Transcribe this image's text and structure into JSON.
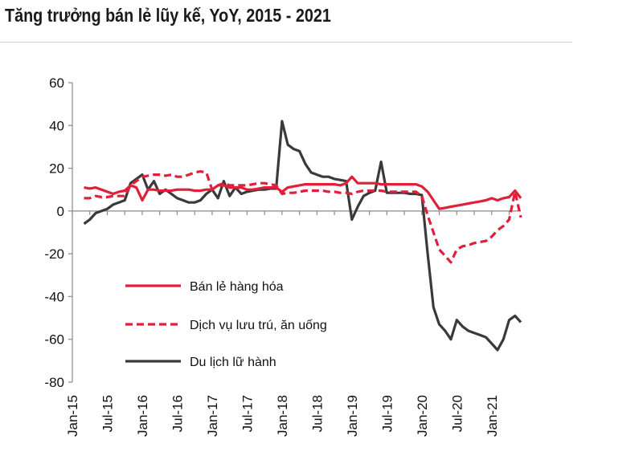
{
  "chart_data": {
    "type": "line",
    "title": "Tăng trưởng bán lẻ lũy kế, YoY, 2015 - 2021",
    "xlabel": "",
    "ylabel": "",
    "ylim": [
      -80,
      60
    ],
    "yticks": [
      60,
      40,
      20,
      0,
      -20,
      -40,
      -60,
      -80
    ],
    "xlim": [
      "Jan-15",
      "Jun-21"
    ],
    "xticks": [
      "Jan-15",
      "Jul-15",
      "Jan-16",
      "Jul-16",
      "Jan-17",
      "Jul-17",
      "Jan-18",
      "Jul-18",
      "Jan-19",
      "Jul-19",
      "Jan-20",
      "Jul-20",
      "Jan-21"
    ],
    "grid": false,
    "legend_position": "center-left",
    "colors": {
      "retail": "#e0203a",
      "accommodation": "#e0203a",
      "travel": "#3a3a3a"
    },
    "series": [
      {
        "name": "Bán lẻ hàng hóa",
        "style": "solid",
        "points": [
          [
            "Mar-15",
            11
          ],
          [
            "Apr-15",
            10.5
          ],
          [
            "May-15",
            11
          ],
          [
            "Jun-15",
            10
          ],
          [
            "Jul-15",
            9
          ],
          [
            "Aug-15",
            8
          ],
          [
            "Sep-15",
            9
          ],
          [
            "Oct-15",
            9.5
          ],
          [
            "Nov-15",
            12
          ],
          [
            "Dec-15",
            11
          ],
          [
            "Jan-16",
            5
          ],
          [
            "Feb-16",
            10
          ],
          [
            "Mar-16",
            10
          ],
          [
            "Apr-16",
            9.5
          ],
          [
            "May-16",
            9.5
          ],
          [
            "Jun-16",
            9.5
          ],
          [
            "Jul-16",
            10
          ],
          [
            "Aug-16",
            10
          ],
          [
            "Sep-16",
            10
          ],
          [
            "Oct-16",
            9.5
          ],
          [
            "Nov-16",
            9.5
          ],
          [
            "Dec-16",
            10
          ],
          [
            "Jan-17",
            10
          ],
          [
            "Feb-17",
            12
          ],
          [
            "Mar-17",
            12
          ],
          [
            "Apr-17",
            11
          ],
          [
            "May-17",
            11
          ],
          [
            "Jun-17",
            11
          ],
          [
            "Jul-17",
            10
          ],
          [
            "Aug-17",
            10
          ],
          [
            "Sep-17",
            10.5
          ],
          [
            "Oct-17",
            11
          ],
          [
            "Nov-17",
            11
          ],
          [
            "Dec-17",
            11
          ],
          [
            "Jan-18",
            9
          ],
          [
            "Feb-18",
            11
          ],
          [
            "Mar-18",
            11.5
          ],
          [
            "Apr-18",
            12
          ],
          [
            "May-18",
            12.5
          ],
          [
            "Jun-18",
            12.5
          ],
          [
            "Jul-18",
            12.5
          ],
          [
            "Aug-18",
            12.5
          ],
          [
            "Sep-18",
            12.5
          ],
          [
            "Oct-18",
            12.5
          ],
          [
            "Nov-18",
            12
          ],
          [
            "Dec-18",
            13
          ],
          [
            "Jan-19",
            16
          ],
          [
            "Feb-19",
            13
          ],
          [
            "Mar-19",
            13
          ],
          [
            "Apr-19",
            13
          ],
          [
            "May-19",
            13
          ],
          [
            "Jun-19",
            12.5
          ],
          [
            "Jul-19",
            12.5
          ],
          [
            "Aug-19",
            12.5
          ],
          [
            "Sep-19",
            12.5
          ],
          [
            "Oct-19",
            12.5
          ],
          [
            "Nov-19",
            12.5
          ],
          [
            "Dec-19",
            12.5
          ],
          [
            "Jan-20",
            11.5
          ],
          [
            "Feb-20",
            9
          ],
          [
            "Mar-20",
            5
          ],
          [
            "Apr-20",
            1
          ],
          [
            "May-20",
            1.5
          ],
          [
            "Jun-20",
            2
          ],
          [
            "Jul-20",
            2.5
          ],
          [
            "Aug-20",
            3
          ],
          [
            "Sep-20",
            3.5
          ],
          [
            "Oct-20",
            4
          ],
          [
            "Nov-20",
            4.5
          ],
          [
            "Dec-20",
            5
          ],
          [
            "Jan-21",
            6
          ],
          [
            "Feb-21",
            5
          ],
          [
            "Mar-21",
            6
          ],
          [
            "Apr-21",
            6.5
          ],
          [
            "May-21",
            9.5
          ],
          [
            "Jun-21",
            6
          ]
        ]
      },
      {
        "name": "Dịch vụ lưu trú, ăn uống",
        "style": "dashed",
        "points": [
          [
            "Mar-15",
            6
          ],
          [
            "Apr-15",
            6
          ],
          [
            "May-15",
            7
          ],
          [
            "Jun-15",
            6.5
          ],
          [
            "Jul-15",
            6.5
          ],
          [
            "Aug-15",
            7
          ],
          [
            "Sep-15",
            7
          ],
          [
            "Oct-15",
            7
          ],
          [
            "Nov-15",
            12
          ],
          [
            "Dec-15",
            14
          ],
          [
            "Jan-16",
            16
          ],
          [
            "Feb-16",
            16.5
          ],
          [
            "Mar-16",
            17
          ],
          [
            "Apr-16",
            17
          ],
          [
            "May-16",
            16.5
          ],
          [
            "Jun-16",
            17
          ],
          [
            "Jul-16",
            16
          ],
          [
            "Aug-16",
            16
          ],
          [
            "Sep-16",
            17
          ],
          [
            "Oct-16",
            18
          ],
          [
            "Nov-16",
            18.5
          ],
          [
            "Dec-16",
            18
          ],
          [
            "Jan-17",
            10
          ],
          [
            "Feb-17",
            12
          ],
          [
            "Mar-17",
            13
          ],
          [
            "Apr-17",
            12
          ],
          [
            "May-17",
            12
          ],
          [
            "Jun-17",
            12
          ],
          [
            "Jul-17",
            12
          ],
          [
            "Aug-17",
            12.5
          ],
          [
            "Sep-17",
            13
          ],
          [
            "Oct-17",
            13
          ],
          [
            "Nov-17",
            12.5
          ],
          [
            "Dec-17",
            12
          ],
          [
            "Jan-18",
            8
          ],
          [
            "Feb-18",
            8.5
          ],
          [
            "Mar-18",
            8.5
          ],
          [
            "Apr-18",
            9
          ],
          [
            "May-18",
            9.5
          ],
          [
            "Jun-18",
            9.5
          ],
          [
            "Jul-18",
            9.5
          ],
          [
            "Aug-18",
            9.5
          ],
          [
            "Sep-18",
            9
          ],
          [
            "Oct-18",
            9
          ],
          [
            "Nov-18",
            8.5
          ],
          [
            "Dec-18",
            8.5
          ],
          [
            "Jan-19",
            8
          ],
          [
            "Feb-19",
            9
          ],
          [
            "Mar-19",
            9.5
          ],
          [
            "Apr-19",
            9.5
          ],
          [
            "May-19",
            9.5
          ],
          [
            "Jun-19",
            9.5
          ],
          [
            "Jul-19",
            9
          ],
          [
            "Aug-19",
            9
          ],
          [
            "Sep-19",
            9
          ],
          [
            "Oct-19",
            9
          ],
          [
            "Nov-19",
            9
          ],
          [
            "Dec-19",
            9
          ],
          [
            "Jan-20",
            7
          ],
          [
            "Feb-20",
            -2
          ],
          [
            "Mar-20",
            -10
          ],
          [
            "Apr-20",
            -18
          ],
          [
            "May-20",
            -21
          ],
          [
            "Jun-20",
            -24
          ],
          [
            "Jul-20",
            -18
          ],
          [
            "Aug-20",
            -16.5
          ],
          [
            "Sep-20",
            -16
          ],
          [
            "Oct-20",
            -15
          ],
          [
            "Nov-20",
            -14.5
          ],
          [
            "Dec-20",
            -14
          ],
          [
            "Jan-21",
            -12
          ],
          [
            "Feb-21",
            -9
          ],
          [
            "Mar-21",
            -7
          ],
          [
            "Apr-21",
            -4
          ],
          [
            "May-21",
            9
          ],
          [
            "Jun-21",
            -3
          ]
        ]
      },
      {
        "name": "Du lịch lữ hành",
        "style": "solid",
        "points": [
          [
            "Mar-15",
            -6
          ],
          [
            "Apr-15",
            -4
          ],
          [
            "May-15",
            -1
          ],
          [
            "Jun-15",
            0
          ],
          [
            "Jul-15",
            1
          ],
          [
            "Aug-15",
            3
          ],
          [
            "Sep-15",
            4
          ],
          [
            "Oct-15",
            5
          ],
          [
            "Nov-15",
            13
          ],
          [
            "Dec-15",
            15
          ],
          [
            "Jan-16",
            17
          ],
          [
            "Feb-16",
            10
          ],
          [
            "Mar-16",
            14
          ],
          [
            "Apr-16",
            8
          ],
          [
            "May-16",
            10
          ],
          [
            "Jun-16",
            8
          ],
          [
            "Jul-16",
            6
          ],
          [
            "Aug-16",
            5
          ],
          [
            "Sep-16",
            4
          ],
          [
            "Oct-16",
            4
          ],
          [
            "Nov-16",
            5
          ],
          [
            "Dec-16",
            8
          ],
          [
            "Jan-17",
            10
          ],
          [
            "Feb-17",
            6
          ],
          [
            "Mar-17",
            14
          ],
          [
            "Apr-17",
            7
          ],
          [
            "May-17",
            11
          ],
          [
            "Jun-17",
            8
          ],
          [
            "Jul-17",
            9
          ],
          [
            "Aug-17",
            9.5
          ],
          [
            "Sep-17",
            10
          ],
          [
            "Oct-17",
            10
          ],
          [
            "Nov-17",
            10.5
          ],
          [
            "Dec-17",
            10.5
          ],
          [
            "Jan-18",
            42
          ],
          [
            "Feb-18",
            31
          ],
          [
            "Mar-18",
            29
          ],
          [
            "Apr-18",
            28
          ],
          [
            "May-18",
            22
          ],
          [
            "Jun-18",
            18
          ],
          [
            "Jul-18",
            17
          ],
          [
            "Aug-18",
            16
          ],
          [
            "Sep-18",
            16
          ],
          [
            "Oct-18",
            15
          ],
          [
            "Nov-18",
            14.5
          ],
          [
            "Dec-18",
            14
          ],
          [
            "Jan-19",
            -4
          ],
          [
            "Feb-19",
            2
          ],
          [
            "Mar-19",
            7
          ],
          [
            "Apr-19",
            8.5
          ],
          [
            "May-19",
            9.5
          ],
          [
            "Jun-19",
            23
          ],
          [
            "Jul-19",
            8.5
          ],
          [
            "Aug-19",
            8.5
          ],
          [
            "Sep-19",
            8.5
          ],
          [
            "Oct-19",
            8.5
          ],
          [
            "Nov-19",
            8
          ],
          [
            "Dec-19",
            8
          ],
          [
            "Jan-20",
            7.5
          ],
          [
            "Feb-20",
            -20
          ],
          [
            "Mar-20",
            -45
          ],
          [
            "Apr-20",
            -53
          ],
          [
            "May-20",
            -56
          ],
          [
            "Jun-20",
            -60
          ],
          [
            "Jul-20",
            -51
          ],
          [
            "Aug-20",
            -54
          ],
          [
            "Sep-20",
            -56
          ],
          [
            "Oct-20",
            -57
          ],
          [
            "Nov-20",
            -58
          ],
          [
            "Dec-20",
            -59
          ],
          [
            "Jan-21",
            -62
          ],
          [
            "Feb-21",
            -65
          ],
          [
            "Mar-21",
            -60
          ],
          [
            "Apr-21",
            -51
          ],
          [
            "May-21",
            -49
          ],
          [
            "Jun-21",
            -52
          ]
        ]
      }
    ]
  }
}
